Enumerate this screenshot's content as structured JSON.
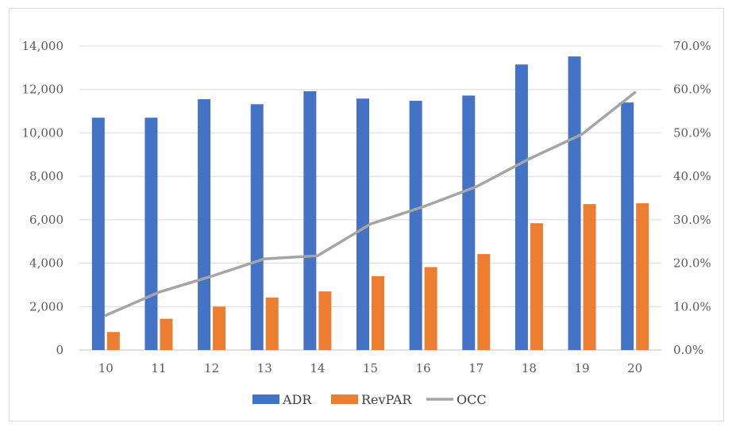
{
  "chart_data": {
    "type": "bar",
    "categories": [
      "10",
      "11",
      "12",
      "13",
      "14",
      "15",
      "16",
      "17",
      "18",
      "19",
      "20"
    ],
    "series": [
      {
        "name": "ADR",
        "kind": "bar",
        "axis": "left",
        "color": "#4472C4",
        "values": [
          10700,
          10700,
          11550,
          11320,
          11920,
          11580,
          11480,
          11720,
          13150,
          13520,
          11400
        ]
      },
      {
        "name": "RevPAR",
        "kind": "bar",
        "axis": "left",
        "color": "#ED7D31",
        "values": [
          830,
          1440,
          2000,
          2420,
          2700,
          3400,
          3820,
          4420,
          5840,
          6720,
          6760
        ]
      },
      {
        "name": "OCC",
        "kind": "line",
        "axis": "right",
        "color": "#A5A5A5",
        "values": [
          0.08,
          0.133,
          0.17,
          0.21,
          0.217,
          0.29,
          0.33,
          0.376,
          0.44,
          0.497,
          0.593
        ]
      }
    ],
    "y_left": {
      "min": 0,
      "max": 14000,
      "step": 2000,
      "tick_labels": [
        "0",
        "2,000",
        "4,000",
        "6,000",
        "8,000",
        "10,000",
        "12,000",
        "14,000"
      ]
    },
    "y_right": {
      "min": 0,
      "max": 0.7,
      "step": 0.1,
      "tick_labels": [
        "0.0%",
        "10.0%",
        "20.0%",
        "30.0%",
        "40.0%",
        "50.0%",
        "60.0%",
        "70.0%"
      ]
    },
    "title": "",
    "xlabel": "",
    "ylabel": "",
    "grid": true,
    "legend_position": "bottom"
  }
}
